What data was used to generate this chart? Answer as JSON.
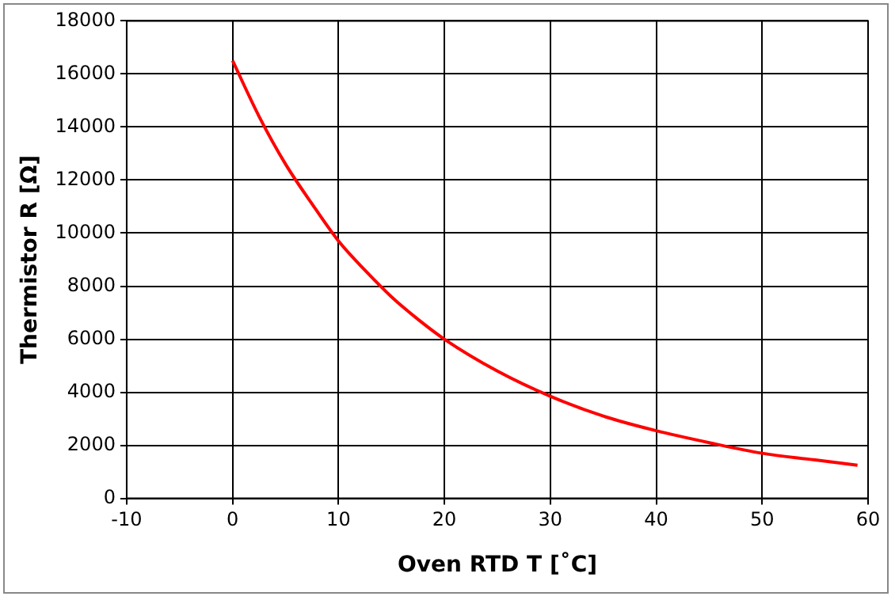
{
  "chart_data": {
    "type": "line",
    "xlabel": "Oven RTD T [˚C]",
    "ylabel": "Thermistor R [Ω]",
    "x": [
      0,
      2.5,
      5,
      7.5,
      10,
      12.5,
      15,
      17.5,
      20,
      25,
      30,
      35,
      40,
      45,
      50,
      55,
      59
    ],
    "series": [
      {
        "color": "#ff0000",
        "values": [
          16500,
          14400,
          12600,
          11100,
          9700,
          8600,
          7600,
          6750,
          6000,
          4800,
          3850,
          3100,
          2550,
          2100,
          1700,
          1450,
          1250
        ]
      }
    ],
    "xlim": [
      -10,
      60
    ],
    "xticks": [
      -10,
      0,
      10,
      20,
      30,
      40,
      50,
      60
    ],
    "ylim": [
      0,
      18000
    ],
    "yticks": [
      0,
      2000,
      4000,
      6000,
      8000,
      10000,
      12000,
      14000,
      16000,
      18000
    ],
    "grid": true,
    "legend": false,
    "marker": "none",
    "line_style": "solid"
  }
}
